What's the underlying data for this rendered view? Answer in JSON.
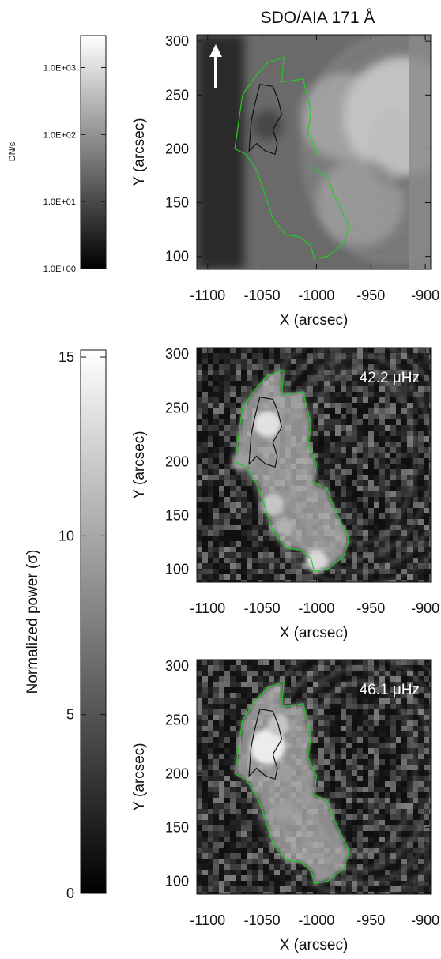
{
  "figure_title": "SDO/AIA 171 Å",
  "colorbar_top": {
    "unit": "DN/s",
    "scale": "log",
    "range": [
      1,
      3000
    ],
    "ticks": [
      {
        "value": 1000,
        "label": "1.0E+03"
      },
      {
        "value": 100,
        "label": "1.0E+02"
      },
      {
        "value": 10,
        "label": "1.0E+01"
      },
      {
        "value": 1,
        "label": "1.0E+00"
      }
    ]
  },
  "colorbar_bottom": {
    "label": "Normalized power (σ)",
    "range": [
      0,
      15.2
    ],
    "ticks": [
      {
        "value": 15,
        "label": "15"
      },
      {
        "value": 10,
        "label": "10"
      },
      {
        "value": 5,
        "label": "5"
      },
      {
        "value": 0,
        "label": "0"
      }
    ]
  },
  "north_arrow": "up-arrow-icon",
  "colors": {
    "contour_outer": "#22cc22",
    "contour_inner": "#111111",
    "axis": "#111111",
    "annotation": "#ffffff"
  },
  "chart_data": [
    {
      "type": "heatmap",
      "panel": "intensity",
      "annotation": "",
      "xlabel": "X (arcsec)",
      "ylabel": "Y (arcsec)",
      "xlim": [
        -1110,
        -895
      ],
      "ylim": [
        88,
        306
      ],
      "xticks": [
        -1100,
        -1050,
        -1000,
        -950,
        -900
      ],
      "yticks": [
        100,
        150,
        200,
        250,
        300
      ],
      "blobs": [
        {
          "x": -1045,
          "y": 222,
          "r": 14,
          "v": 0.15
        },
        {
          "x": -975,
          "y": 230,
          "r": 40,
          "v": 0.55
        },
        {
          "x": -920,
          "y": 230,
          "r": 55,
          "v": 0.75
        },
        {
          "x": -960,
          "y": 150,
          "r": 40,
          "v": 0.5
        }
      ]
    },
    {
      "type": "heatmap",
      "panel": "power",
      "annotation": "42.2 μHz",
      "xlabel": "X (arcsec)",
      "ylabel": "Y (arcsec)",
      "xlim": [
        -1110,
        -895
      ],
      "ylim": [
        88,
        306
      ],
      "xticks": [
        -1100,
        -1050,
        -1000,
        -950,
        -900
      ],
      "yticks": [
        100,
        150,
        200,
        250,
        300
      ],
      "blobs": [
        {
          "x": -1045,
          "y": 235,
          "r": 12,
          "v": 0.85
        },
        {
          "x": -1040,
          "y": 160,
          "r": 10,
          "v": 0.7
        },
        {
          "x": -1000,
          "y": 108,
          "r": 10,
          "v": 0.8
        },
        {
          "x": -1030,
          "y": 140,
          "r": 8,
          "v": 0.6
        },
        {
          "x": -1070,
          "y": 200,
          "r": 8,
          "v": 0.5
        }
      ]
    },
    {
      "type": "heatmap",
      "panel": "power",
      "annotation": "46.1 μHz",
      "xlabel": "X (arcsec)",
      "ylabel": "Y (arcsec)",
      "xlim": [
        -1110,
        -895
      ],
      "ylim": [
        88,
        306
      ],
      "xticks": [
        -1100,
        -1050,
        -1000,
        -950,
        -900
      ],
      "yticks": [
        100,
        150,
        200,
        250,
        300
      ],
      "blobs": [
        {
          "x": -1045,
          "y": 225,
          "r": 16,
          "v": 0.9
        },
        {
          "x": -1035,
          "y": 245,
          "r": 10,
          "v": 0.7
        },
        {
          "x": -1030,
          "y": 165,
          "r": 9,
          "v": 0.5
        }
      ]
    }
  ],
  "contours": {
    "outer": [
      [
        -1075,
        200
      ],
      [
        -1068,
        250
      ],
      [
        -1058,
        265
      ],
      [
        -1045,
        280
      ],
      [
        -1030,
        285
      ],
      [
        -1032,
        262
      ],
      [
        -1012,
        265
      ],
      [
        -1010,
        255
      ],
      [
        -1005,
        235
      ],
      [
        -1008,
        215
      ],
      [
        -1000,
        198
      ],
      [
        -1002,
        180
      ],
      [
        -990,
        175
      ],
      [
        -985,
        160
      ],
      [
        -978,
        145
      ],
      [
        -970,
        128
      ],
      [
        -975,
        112
      ],
      [
        -990,
        100
      ],
      [
        -1002,
        98
      ],
      [
        -1005,
        110
      ],
      [
        -1015,
        118
      ],
      [
        -1028,
        120
      ],
      [
        -1040,
        135
      ],
      [
        -1048,
        160
      ],
      [
        -1055,
        180
      ],
      [
        -1065,
        195
      ]
    ],
    "inner": [
      [
        -1062,
        198
      ],
      [
        -1060,
        225
      ],
      [
        -1057,
        240
      ],
      [
        -1052,
        260
      ],
      [
        -1040,
        258
      ],
      [
        -1035,
        245
      ],
      [
        -1032,
        232
      ],
      [
        -1040,
        218
      ],
      [
        -1036,
        205
      ],
      [
        -1038,
        195
      ],
      [
        -1047,
        198
      ],
      [
        -1055,
        205
      ]
    ]
  }
}
